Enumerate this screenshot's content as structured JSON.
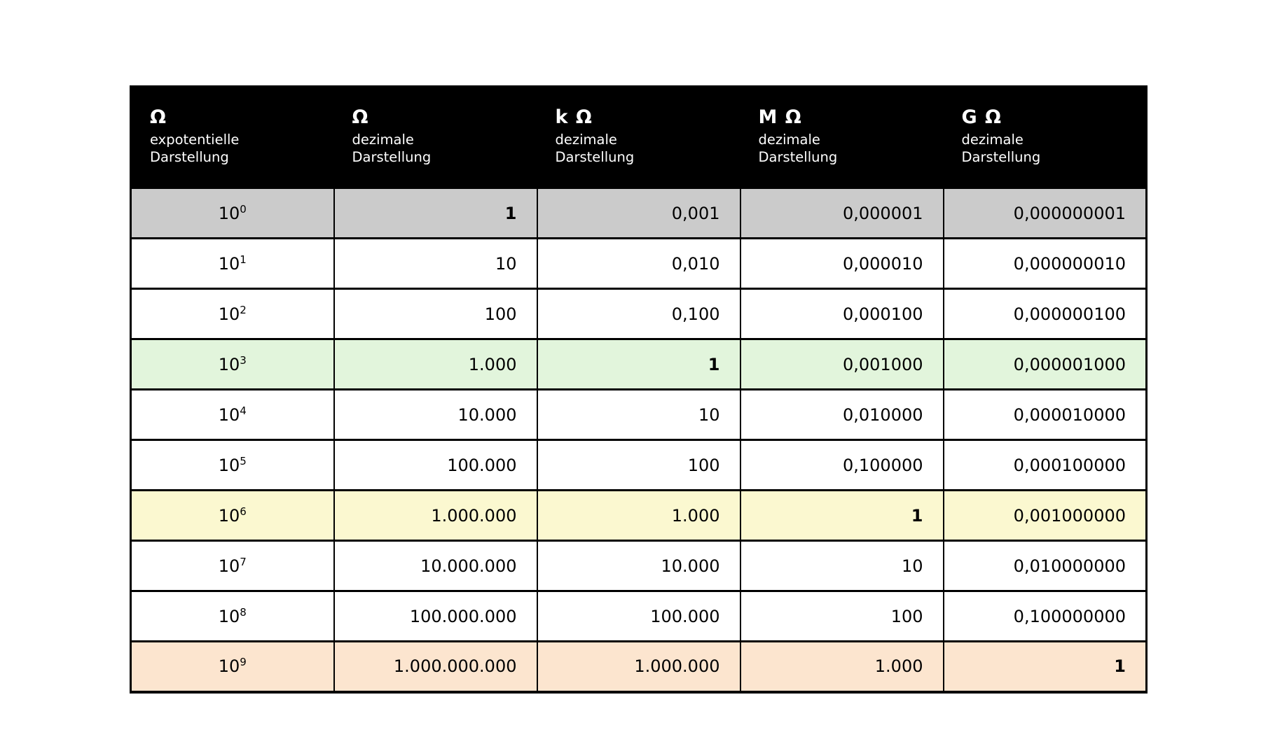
{
  "colors": {
    "page_bg": "#ffffff",
    "header_bg": "#000000",
    "header_text": "#ffffff",
    "border": "#000000",
    "row_highlight_gray": "#cbcbcb",
    "row_highlight_green": "#e2f5dc",
    "row_highlight_yellow": "#fbf8d0",
    "row_highlight_orange": "#fce5cf"
  },
  "table": {
    "headers": [
      {
        "symbol": "Ω",
        "line1": "expotentielle",
        "line2": "Darstellung"
      },
      {
        "symbol": "Ω",
        "line1": "dezimale",
        "line2": "Darstellung"
      },
      {
        "symbol": "k Ω",
        "line1": "dezimale",
        "line2": "Darstellung"
      },
      {
        "symbol": "M Ω",
        "line1": "dezimale",
        "line2": "Darstellung"
      },
      {
        "symbol": "G Ω",
        "line1": "dezimale",
        "line2": "Darstellung"
      }
    ],
    "rows": [
      {
        "exp_base": "10",
        "exp": "0",
        "ohm": "1",
        "kohm": "0,001",
        "mohm": "0,000001",
        "gohm": "0,000000001",
        "highlight": "gray"
      },
      {
        "exp_base": "10",
        "exp": "1",
        "ohm": "10",
        "kohm": "0,010",
        "mohm": "0,000010",
        "gohm": "0,000000010",
        "highlight": null
      },
      {
        "exp_base": "10",
        "exp": "2",
        "ohm": "100",
        "kohm": "0,100",
        "mohm": "0,000100",
        "gohm": "0,000000100",
        "highlight": null
      },
      {
        "exp_base": "10",
        "exp": "3",
        "ohm": "1.000",
        "kohm": "1",
        "mohm": "0,001000",
        "gohm": "0,000001000",
        "highlight": "green"
      },
      {
        "exp_base": "10",
        "exp": "4",
        "ohm": "10.000",
        "kohm": "10",
        "mohm": "0,010000",
        "gohm": "0,000010000",
        "highlight": null
      },
      {
        "exp_base": "10",
        "exp": "5",
        "ohm": "100.000",
        "kohm": "100",
        "mohm": "0,100000",
        "gohm": "0,000100000",
        "highlight": null
      },
      {
        "exp_base": "10",
        "exp": "6",
        "ohm": "1.000.000",
        "kohm": "1.000",
        "mohm": "1",
        "gohm": "0,001000000",
        "highlight": "yellow"
      },
      {
        "exp_base": "10",
        "exp": "7",
        "ohm": "10.000.000",
        "kohm": "10.000",
        "mohm": "10",
        "gohm": "0,010000000",
        "highlight": null
      },
      {
        "exp_base": "10",
        "exp": "8",
        "ohm": "100.000.000",
        "kohm": "100.000",
        "mohm": "100",
        "gohm": "0,100000000",
        "highlight": null
      },
      {
        "exp_base": "10",
        "exp": "9",
        "ohm": "1.000.000.000",
        "kohm": "1.000.000",
        "mohm": "1.000",
        "gohm": "1",
        "highlight": "orange"
      }
    ]
  }
}
